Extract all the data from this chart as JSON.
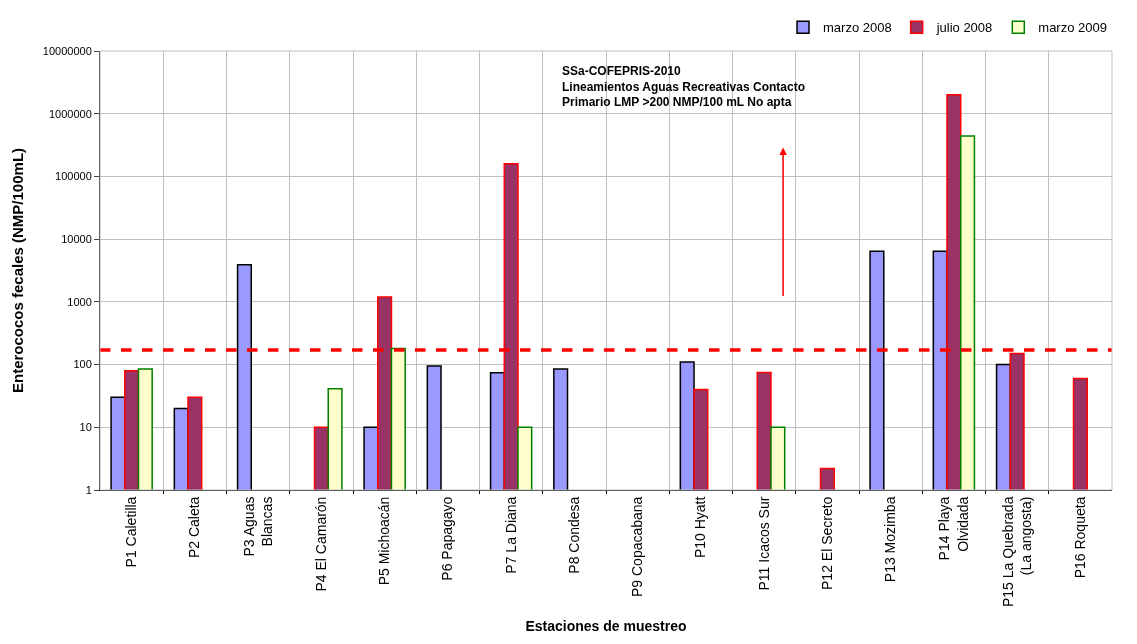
{
  "chart_data": {
    "type": "bar",
    "xlabel": "Estaciones de muestreo",
    "ylabel": "Enterococos fecales (NMP/100mL)",
    "categories": [
      "P1 Caletilla",
      "P2 Caleta",
      "P3 Aguas\nBlancas",
      "P4 El Camarón",
      "P5 Michoacán",
      "P6 Papagayo",
      "P7 La Diana",
      "P8 Condesa",
      "P9 Copacabana",
      "P10 Hyatt",
      "P11 Icacos Sur",
      "P12 El Secreto",
      "P13 Mozimba",
      "P14 Playa\nOlvidada",
      "P15 La Quebrada\n(La angosta)",
      "P16 Roqueta"
    ],
    "series": [
      {
        "name": "marzo 2008",
        "color": "#9999ff",
        "values": [
          30,
          20,
          3900,
          null,
          10,
          95,
          74,
          85,
          null,
          110,
          null,
          null,
          6400,
          6400,
          100,
          null
        ]
      },
      {
        "name": "julio 2008",
        "color": "#993366",
        "values": [
          80,
          30,
          null,
          10,
          1200,
          null,
          160000,
          null,
          null,
          40,
          75,
          2.2,
          null,
          2000000,
          150,
          60
        ]
      },
      {
        "name": "marzo 2009",
        "color": "#ffffcc",
        "values": [
          85,
          null,
          null,
          41,
          180,
          null,
          10,
          null,
          null,
          null,
          10,
          null,
          null,
          440000,
          null,
          null
        ]
      }
    ],
    "log": "y",
    "ylim": [
      1,
      10000000
    ],
    "yticks": [
      1,
      10,
      100,
      1000,
      10000,
      100000,
      1000000,
      10000000
    ],
    "grid": true,
    "legend": "top right",
    "ref_lines": [
      {
        "axis": "y",
        "value": 170,
        "color": "#ff0000",
        "line_style": "dashed"
      }
    ],
    "annotations": [
      "SSa-COFEPRIS-2010\nLineamientos Aguas Recreativas Contacto\nPrimario LMP >200 NMP/100 mL No apta"
    ]
  }
}
